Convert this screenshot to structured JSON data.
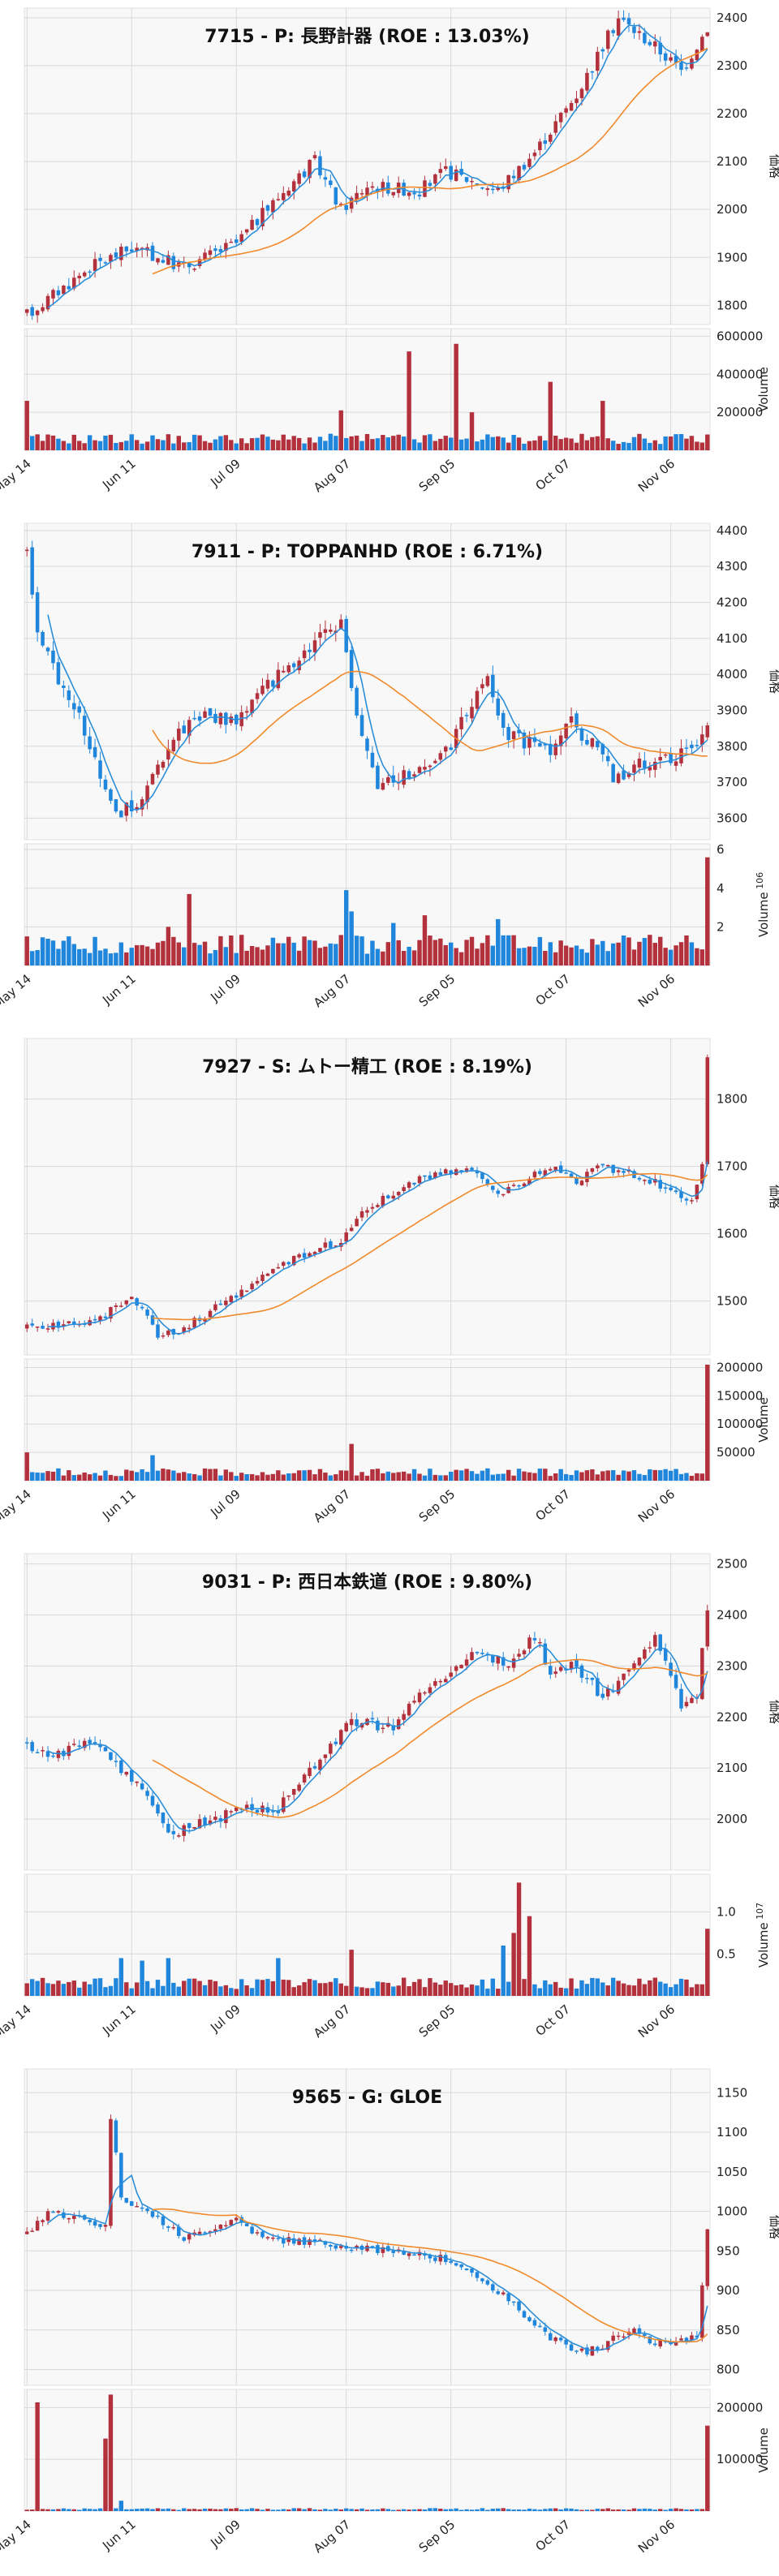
{
  "colors": {
    "up": "#b2313d",
    "down": "#1f86dc",
    "ma_short": "#2b8ed8",
    "ma_long": "#f08a2c",
    "panel_bg": "#f8f8f8",
    "grid": "#d9d9d9"
  },
  "chart_data": [
    {
      "type": "candlestick",
      "title": "7715 - P: 長野計器 (ROE : 13.03%)",
      "ylabel": "価格",
      "vol_label": "Volume",
      "price_ticks": [
        1800,
        1900,
        2000,
        2100,
        2200,
        2300,
        2400
      ],
      "price_ylim": [
        1760,
        2420
      ],
      "vol_ticks": [
        200000,
        400000,
        600000
      ],
      "vol_tick_labels": [
        "200000",
        "400000",
        "600000"
      ],
      "vol_ylim": [
        0,
        640000
      ],
      "x_ticks": [
        "May 14",
        "Jun 11",
        "Jul 09",
        "Aug 07",
        "Sep 05",
        "Oct 07",
        "Nov 06"
      ],
      "anchors": [
        [
          0,
          1780
        ],
        [
          12,
          1880
        ],
        [
          20,
          1920
        ],
        [
          30,
          1880
        ],
        [
          40,
          1930
        ],
        [
          50,
          2050
        ],
        [
          55,
          2100
        ],
        [
          60,
          2000
        ],
        [
          65,
          2050
        ],
        [
          75,
          2040
        ],
        [
          80,
          2080
        ],
        [
          90,
          2040
        ],
        [
          97,
          2120
        ],
        [
          105,
          2240
        ],
        [
          113,
          2400
        ],
        [
          120,
          2340
        ],
        [
          125,
          2290
        ],
        [
          130,
          2380
        ]
      ],
      "noise": 28,
      "vol_base": 60000,
      "vol_spikes": [
        [
          0,
          260000
        ],
        [
          60,
          210000
        ],
        [
          73,
          520000
        ],
        [
          82,
          560000
        ],
        [
          85,
          200000
        ],
        [
          100,
          360000
        ],
        [
          110,
          260000
        ]
      ],
      "vol_exp": ""
    },
    {
      "type": "candlestick",
      "title": "7911 - P: TOPPANHD (ROE : 6.71%)",
      "ylabel": "価格",
      "vol_label": "Volume",
      "price_ticks": [
        3600,
        3700,
        3800,
        3900,
        4000,
        4100,
        4200,
        4300,
        4400
      ],
      "price_ylim": [
        3540,
        4420
      ],
      "vol_ticks": [
        2,
        4,
        6
      ],
      "vol_tick_labels": [
        "2",
        "4",
        "6"
      ],
      "vol_ylim": [
        0,
        6.3
      ],
      "x_ticks": [
        "May 14",
        "Jun 11",
        "Jul 09",
        "Aug 07",
        "Sep 05",
        "Oct 07",
        "Nov 06"
      ],
      "anchors": [
        [
          0,
          4350
        ],
        [
          2,
          4100
        ],
        [
          10,
          3880
        ],
        [
          17,
          3620
        ],
        [
          22,
          3640
        ],
        [
          27,
          3800
        ],
        [
          32,
          3880
        ],
        [
          40,
          3870
        ],
        [
          45,
          3950
        ],
        [
          52,
          4050
        ],
        [
          60,
          4150
        ],
        [
          63,
          3900
        ],
        [
          67,
          3700
        ],
        [
          72,
          3720
        ],
        [
          80,
          3780
        ],
        [
          85,
          3920
        ],
        [
          88,
          3980
        ],
        [
          92,
          3830
        ],
        [
          100,
          3790
        ],
        [
          103,
          3880
        ],
        [
          108,
          3800
        ],
        [
          112,
          3720
        ],
        [
          120,
          3760
        ],
        [
          125,
          3780
        ],
        [
          130,
          3840
        ]
      ],
      "noise": 45,
      "vol_base": 1.1,
      "vol_spikes": [
        [
          27,
          2.0
        ],
        [
          31,
          3.7
        ],
        [
          61,
          3.9
        ],
        [
          62,
          2.8
        ],
        [
          70,
          2.2
        ],
        [
          76,
          2.6
        ],
        [
          90,
          2.4
        ],
        [
          127,
          1.2
        ],
        [
          130,
          5.6
        ]
      ],
      "vol_exp": "6"
    },
    {
      "type": "candlestick",
      "title": "7927 - S: ムトー精工 (ROE : 8.19%)",
      "ylabel": "価格",
      "vol_label": "Volume",
      "price_ticks": [
        1500,
        1600,
        1700,
        1800
      ],
      "price_ylim": [
        1420,
        1890
      ],
      "vol_ticks": [
        50000,
        100000,
        150000,
        200000
      ],
      "vol_tick_labels": [
        "50000",
        "100000",
        "150000",
        "200000"
      ],
      "vol_ylim": [
        0,
        215000
      ],
      "x_ticks": [
        "May 14",
        "Jun 11",
        "Jul 09",
        "Aug 07",
        "Sep 05",
        "Oct 07",
        "Nov 06"
      ],
      "anchors": [
        [
          0,
          1460
        ],
        [
          10,
          1470
        ],
        [
          15,
          1480
        ],
        [
          20,
          1510
        ],
        [
          25,
          1450
        ],
        [
          30,
          1460
        ],
        [
          40,
          1510
        ],
        [
          50,
          1560
        ],
        [
          60,
          1590
        ],
        [
          65,
          1640
        ],
        [
          75,
          1680
        ],
        [
          85,
          1700
        ],
        [
          90,
          1660
        ],
        [
          100,
          1700
        ],
        [
          105,
          1680
        ],
        [
          110,
          1700
        ],
        [
          115,
          1690
        ],
        [
          122,
          1670
        ],
        [
          127,
          1650
        ],
        [
          129,
          1700
        ],
        [
          130,
          1860
        ]
      ],
      "noise": 12,
      "vol_base": 15000,
      "vol_spikes": [
        [
          0,
          50000
        ],
        [
          24,
          45000
        ],
        [
          62,
          65000
        ],
        [
          130,
          205000
        ]
      ],
      "vol_exp": ""
    },
    {
      "type": "candlestick",
      "title": "9031 - P: 西日本鉄道 (ROE : 9.80%)",
      "ylabel": "価格",
      "vol_label": "Volume",
      "price_ticks": [
        2000,
        2100,
        2200,
        2300,
        2400,
        2500
      ],
      "price_ylim": [
        1900,
        2520
      ],
      "vol_ticks": [
        0.5,
        1.0
      ],
      "vol_tick_labels": [
        "0.5",
        "1.0"
      ],
      "vol_ylim": [
        0,
        1.45
      ],
      "x_ticks": [
        "May 14",
        "Jun 11",
        "Jul 09",
        "Aug 07",
        "Sep 05",
        "Oct 07",
        "Nov 06"
      ],
      "anchors": [
        [
          0,
          2150
        ],
        [
          5,
          2120
        ],
        [
          12,
          2150
        ],
        [
          20,
          2080
        ],
        [
          28,
          1970
        ],
        [
          35,
          2000
        ],
        [
          42,
          2020
        ],
        [
          48,
          2020
        ],
        [
          55,
          2110
        ],
        [
          62,
          2190
        ],
        [
          70,
          2180
        ],
        [
          75,
          2250
        ],
        [
          85,
          2320
        ],
        [
          92,
          2310
        ],
        [
          97,
          2360
        ],
        [
          100,
          2290
        ],
        [
          105,
          2300
        ],
        [
          110,
          2240
        ],
        [
          115,
          2290
        ],
        [
          120,
          2360
        ],
        [
          125,
          2220
        ],
        [
          128,
          2240
        ],
        [
          130,
          2410
        ]
      ],
      "noise": 22,
      "vol_base": 0.15,
      "vol_spikes": [
        [
          0,
          0.15
        ],
        [
          18,
          0.45
        ],
        [
          22,
          0.42
        ],
        [
          27,
          0.45
        ],
        [
          48,
          0.45
        ],
        [
          62,
          0.55
        ],
        [
          91,
          0.6
        ],
        [
          93,
          0.75
        ],
        [
          94,
          1.35
        ],
        [
          96,
          0.95
        ],
        [
          130,
          0.8
        ]
      ],
      "vol_exp": "7"
    },
    {
      "type": "candlestick",
      "title": "9565 - G: GLOE",
      "ylabel": "価格",
      "vol_label": "Volume",
      "price_ticks": [
        800,
        850,
        900,
        950,
        1000,
        1050,
        1100,
        1150
      ],
      "price_ylim": [
        780,
        1180
      ],
      "vol_ticks": [
        100000,
        200000
      ],
      "vol_tick_labels": [
        "100000",
        "200000"
      ],
      "vol_ylim": [
        0,
        235000
      ],
      "x_ticks": [
        "May 14",
        "Jun 11",
        "Jul 09",
        "Aug 07",
        "Sep 05",
        "Oct 07",
        "Nov 06"
      ],
      "anchors": [
        [
          0,
          970
        ],
        [
          4,
          1000
        ],
        [
          10,
          990
        ],
        [
          15,
          980
        ],
        [
          16,
          1120
        ],
        [
          18,
          1020
        ],
        [
          20,
          1010
        ],
        [
          25,
          990
        ],
        [
          30,
          965
        ],
        [
          40,
          990
        ],
        [
          45,
          965
        ],
        [
          55,
          960
        ],
        [
          62,
          955
        ],
        [
          70,
          950
        ],
        [
          80,
          940
        ],
        [
          88,
          910
        ],
        [
          95,
          870
        ],
        [
          100,
          840
        ],
        [
          105,
          820
        ],
        [
          110,
          830
        ],
        [
          115,
          850
        ],
        [
          120,
          835
        ],
        [
          128,
          840
        ],
        [
          130,
          980
        ]
      ],
      "noise": 10,
      "vol_base": 4000,
      "vol_spikes": [
        [
          2,
          210000
        ],
        [
          15,
          140000
        ],
        [
          16,
          225000
        ],
        [
          18,
          20000
        ],
        [
          130,
          165000
        ]
      ],
      "vol_exp": ""
    }
  ]
}
